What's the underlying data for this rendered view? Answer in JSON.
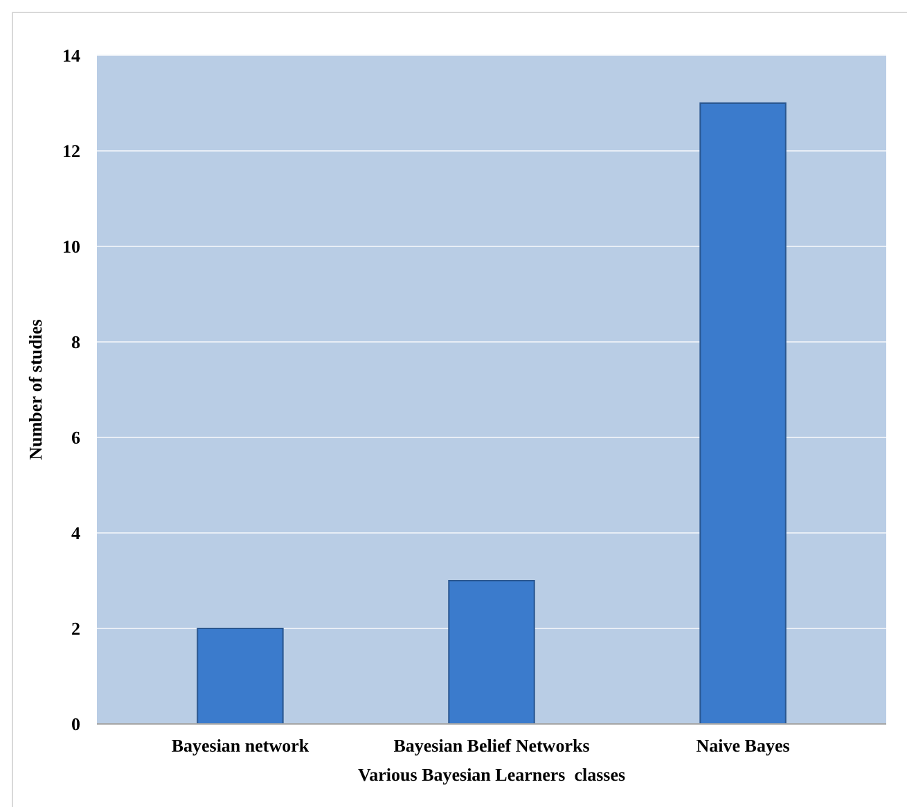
{
  "chart_data": {
    "type": "bar",
    "xlabel": "Various Bayesian Learners  classes",
    "ylabel": "Number of studies",
    "categories": [
      "Bayesian network",
      "Bayesian Belief Networks",
      "Naive Bayes"
    ],
    "values": [
      2,
      3,
      13
    ],
    "color": "#3b7bcc",
    "ylim": [
      0,
      14
    ],
    "yticks": [
      0,
      2,
      4,
      6,
      8,
      10,
      12,
      14
    ],
    "grid": "y"
  }
}
